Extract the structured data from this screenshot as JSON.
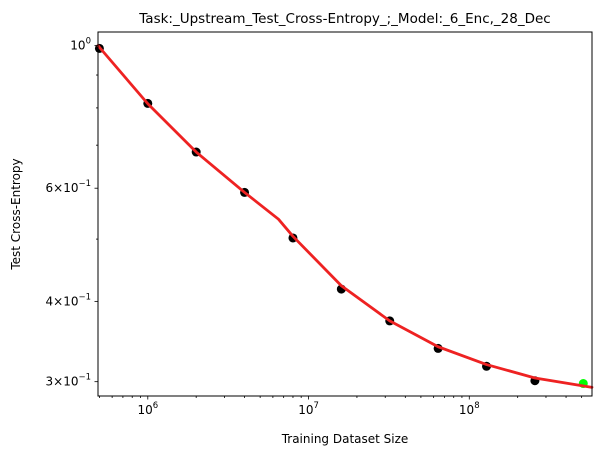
{
  "chart_data": {
    "type": "scatter",
    "title": "Task:_Upstream_Test_Cross-Entropy_;_Model:_6_Enc,_28_Dec",
    "xlabel": "Training Dataset Size",
    "ylabel": "Test Cross-Entropy",
    "xscale": "log",
    "yscale": "log",
    "xlim": [
      490000,
      580000000
    ],
    "ylim": [
      0.285,
      1.05
    ],
    "x_ticks": [
      {
        "value": 1000000,
        "base": "10",
        "exp": "6"
      },
      {
        "value": 10000000,
        "base": "10",
        "exp": "7"
      },
      {
        "value": 100000000,
        "base": "10",
        "exp": "8"
      }
    ],
    "y_ticks": [
      {
        "value": 1.0,
        "mant": "",
        "base": "10",
        "exp": "0"
      },
      {
        "value": 0.6,
        "mant": "6×",
        "base": "10",
        "exp": "−1"
      },
      {
        "value": 0.4,
        "mant": "4×",
        "base": "10",
        "exp": "−1"
      },
      {
        "value": 0.3,
        "mant": "3×",
        "base": "10",
        "exp": "−1"
      }
    ],
    "series": [
      {
        "color": "#000000",
        "marker": "circle",
        "x": [
          500000,
          1000000,
          2000000,
          4000000,
          8000000,
          16000000,
          32000000,
          64000000,
          128000000,
          256000000
        ],
        "y": [
          0.99,
          0.813,
          0.683,
          0.591,
          0.502,
          0.418,
          0.373,
          0.338,
          0.317,
          0.301
        ]
      },
      {
        "color": "#00ff00",
        "marker": "circle",
        "x": [
          512000000
        ],
        "y": [
          0.298
        ]
      },
      {
        "color": "#ee2222",
        "style": "line",
        "x": [
          490000,
          1000000,
          2000000,
          4000000,
          6500000,
          8000000,
          16000000,
          32000000,
          64000000,
          128000000,
          256000000,
          580000000
        ],
        "y": [
          1.0,
          0.812,
          0.683,
          0.591,
          0.537,
          0.505,
          0.423,
          0.373,
          0.34,
          0.319,
          0.304,
          0.294
        ]
      }
    ],
    "grid": false,
    "legend": "none"
  }
}
